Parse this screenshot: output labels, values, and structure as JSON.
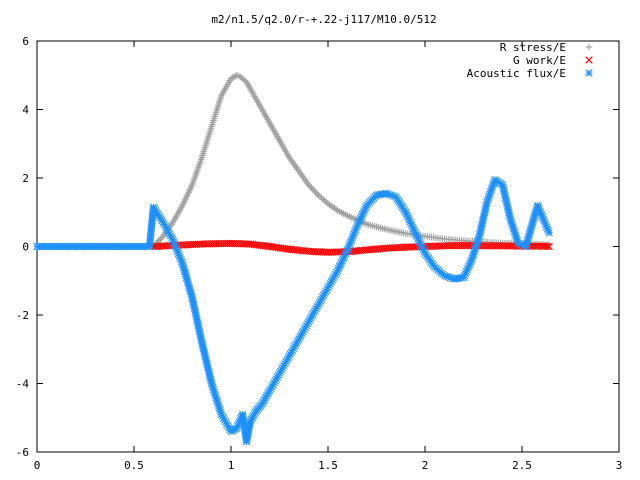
{
  "chart_data": {
    "type": "scatter",
    "title": "m2/n1.5/q2.0/r-+.22-j117/M10.0/512",
    "xlabel": "",
    "ylabel": "",
    "xlim": [
      0,
      3
    ],
    "ylim": [
      -6,
      6
    ],
    "xticks": [
      0,
      0.5,
      1,
      1.5,
      2,
      2.5,
      3
    ],
    "xtick_labels": [
      "0",
      "0.5",
      "1",
      "1.5",
      "2",
      "2.5",
      "3"
    ],
    "yticks": [
      -6,
      -4,
      -2,
      0,
      2,
      4,
      6
    ],
    "ytick_labels": [
      "-6",
      "-4",
      "-2",
      "0",
      "2",
      "4",
      "6"
    ],
    "grid": false,
    "legend_position": "top-right",
    "series": [
      {
        "name": "R stress/E",
        "marker": "plus",
        "color": "#a0a0a0",
        "x": [
          0.6,
          0.65,
          0.7,
          0.75,
          0.8,
          0.85,
          0.9,
          0.95,
          1.0,
          1.03,
          1.05,
          1.08,
          1.1,
          1.15,
          1.2,
          1.25,
          1.3,
          1.35,
          1.4,
          1.45,
          1.5,
          1.55,
          1.6,
          1.7,
          1.8,
          1.9,
          2.0,
          2.1,
          2.2,
          2.3,
          2.4,
          2.5,
          2.6,
          2.64
        ],
        "y": [
          0.0,
          0.3,
          0.7,
          1.2,
          1.8,
          2.6,
          3.5,
          4.4,
          4.9,
          5.0,
          4.95,
          4.8,
          4.6,
          4.1,
          3.6,
          3.1,
          2.6,
          2.2,
          1.8,
          1.5,
          1.25,
          1.05,
          0.9,
          0.65,
          0.5,
          0.38,
          0.3,
          0.22,
          0.17,
          0.13,
          0.1,
          0.08,
          0.06,
          0.05
        ]
      },
      {
        "name": "G work/E",
        "marker": "cross",
        "color": "#ff0000",
        "x": [
          0.6,
          0.7,
          0.8,
          0.9,
          1.0,
          1.1,
          1.2,
          1.3,
          1.4,
          1.5,
          1.6,
          1.7,
          1.8,
          1.9,
          2.0,
          2.1,
          2.2,
          2.3,
          2.4,
          2.5,
          2.6,
          2.64
        ],
        "y": [
          0.0,
          0.03,
          0.06,
          0.08,
          0.09,
          0.07,
          0.0,
          -0.08,
          -0.14,
          -0.17,
          -0.15,
          -0.1,
          -0.05,
          -0.02,
          0.0,
          0.02,
          0.03,
          0.02,
          0.02,
          0.01,
          0.01,
          0.0
        ]
      },
      {
        "name": "Acoustic flux/E",
        "marker": "star",
        "color": "#1e90ff",
        "x": [
          0.0,
          0.58,
          0.6,
          0.65,
          0.7,
          0.75,
          0.8,
          0.85,
          0.9,
          0.95,
          1.0,
          1.03,
          1.06,
          1.08,
          1.1,
          1.13,
          1.16,
          1.2,
          1.3,
          1.4,
          1.5,
          1.55,
          1.6,
          1.65,
          1.7,
          1.75,
          1.8,
          1.85,
          1.9,
          1.95,
          2.0,
          2.05,
          2.1,
          2.15,
          2.2,
          2.24,
          2.28,
          2.32,
          2.36,
          2.4,
          2.44,
          2.48,
          2.52,
          2.55,
          2.58,
          2.61,
          2.64
        ],
        "y": [
          0.0,
          0.0,
          1.15,
          0.7,
          0.2,
          -0.5,
          -1.5,
          -2.8,
          -4.0,
          -4.9,
          -5.4,
          -5.3,
          -4.9,
          -5.7,
          -5.1,
          -4.8,
          -4.6,
          -4.2,
          -3.2,
          -2.2,
          -1.2,
          -0.7,
          -0.1,
          0.6,
          1.2,
          1.5,
          1.55,
          1.45,
          1.0,
          0.4,
          -0.2,
          -0.6,
          -0.85,
          -0.95,
          -0.9,
          -0.4,
          0.3,
          1.3,
          1.95,
          1.8,
          0.8,
          0.1,
          0.0,
          0.6,
          1.2,
          0.8,
          0.4
        ]
      }
    ]
  }
}
